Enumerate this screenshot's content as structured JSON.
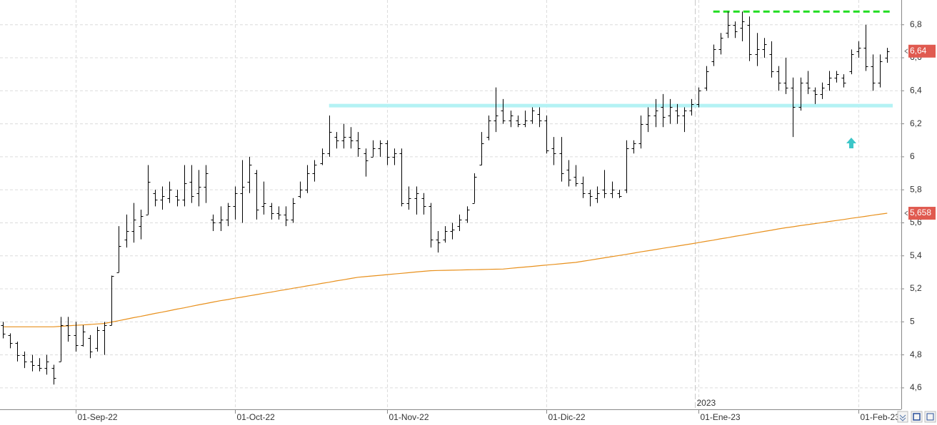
{
  "chart_data": {
    "type": "ohlc",
    "categories": [
      "2022-08-18",
      "2022-08-19",
      "2022-08-22",
      "2022-08-23",
      "2022-08-24",
      "2022-08-25",
      "2022-08-26",
      "2022-08-29",
      "2022-08-30",
      "2022-08-31",
      "2022-09-01",
      "2022-09-02",
      "2022-09-05",
      "2022-09-06",
      "2022-09-07",
      "2022-09-08",
      "2022-09-09",
      "2022-09-12",
      "2022-09-13",
      "2022-09-14",
      "2022-09-15",
      "2022-09-16",
      "2022-09-19",
      "2022-09-20",
      "2022-09-21",
      "2022-09-22",
      "2022-09-23",
      "2022-09-26",
      "2022-09-27",
      "2022-09-28",
      "2022-09-29",
      "2022-09-30",
      "2022-10-03",
      "2022-10-04",
      "2022-10-05",
      "2022-10-06",
      "2022-10-07",
      "2022-10-10",
      "2022-10-11",
      "2022-10-12",
      "2022-10-13",
      "2022-10-14",
      "2022-10-17",
      "2022-10-18",
      "2022-10-19",
      "2022-10-20",
      "2022-10-21",
      "2022-10-24",
      "2022-10-25",
      "2022-10-26",
      "2022-10-27",
      "2022-10-28",
      "2022-10-31",
      "2022-11-01",
      "2022-11-02",
      "2022-11-03",
      "2022-11-04",
      "2022-11-07",
      "2022-11-08",
      "2022-11-09",
      "2022-11-10",
      "2022-11-11",
      "2022-11-14",
      "2022-11-15",
      "2022-11-16",
      "2022-11-17",
      "2022-11-18",
      "2022-11-21",
      "2022-11-22",
      "2022-11-23",
      "2022-11-24",
      "2022-11-25",
      "2022-11-28",
      "2022-11-29",
      "2022-11-30",
      "2022-12-01",
      "2022-12-02",
      "2022-12-05",
      "2022-12-06",
      "2022-12-07",
      "2022-12-08",
      "2022-12-09",
      "2022-12-12",
      "2022-12-13",
      "2022-12-14",
      "2022-12-15",
      "2022-12-16",
      "2022-12-19",
      "2022-12-20",
      "2022-12-21",
      "2022-12-22",
      "2022-12-23",
      "2022-12-27",
      "2022-12-28",
      "2022-12-29",
      "2022-12-30",
      "2023-01-02",
      "2023-01-03",
      "2023-01-04",
      "2023-01-05",
      "2023-01-06",
      "2023-01-09",
      "2023-01-10",
      "2023-01-11",
      "2023-01-12",
      "2023-01-13",
      "2023-01-16",
      "2023-01-17",
      "2023-01-18",
      "2023-01-19",
      "2023-01-20",
      "2023-01-23",
      "2023-01-24",
      "2023-01-25",
      "2023-01-26",
      "2023-01-27",
      "2023-01-30",
      "2023-01-31",
      "2023-02-01",
      "2023-02-02",
      "2023-02-03",
      "2023-02-06",
      "2023-02-07"
    ],
    "open": [
      4.98,
      4.92,
      4.87,
      4.8,
      4.76,
      4.74,
      4.72,
      4.72,
      4.76,
      4.98,
      4.92,
      4.86,
      4.9,
      4.84,
      4.95,
      4.98,
      5.3,
      5.5,
      5.55,
      5.58,
      5.65,
      5.78,
      5.74,
      5.75,
      5.76,
      5.74,
      5.85,
      5.78,
      5.82,
      5.62,
      5.6,
      5.62,
      5.7,
      5.78,
      5.85,
      5.9,
      5.7,
      5.7,
      5.66,
      5.65,
      5.62,
      5.76,
      5.8,
      5.9,
      5.96,
      6.02,
      6.12,
      6.1,
      6.12,
      6.1,
      6.02,
      6.0,
      6.05,
      6.08,
      6.0,
      6.02,
      5.72,
      5.75,
      5.75,
      5.7,
      5.5,
      5.5,
      5.55,
      5.58,
      5.62,
      5.72,
      5.95,
      6.12,
      6.22,
      6.28,
      6.22,
      6.22,
      6.2,
      6.22,
      6.26,
      6.22,
      6.05,
      6.02,
      5.92,
      5.88,
      5.84,
      5.78,
      5.75,
      5.8,
      5.78,
      5.78,
      5.8,
      6.05,
      6.08,
      6.2,
      6.25,
      6.3,
      6.25,
      6.28,
      6.25,
      6.28,
      6.32,
      6.42,
      6.58,
      6.65,
      6.75,
      6.8,
      6.78,
      6.8,
      6.62,
      6.65,
      6.62,
      6.52,
      6.45,
      6.42,
      6.3,
      6.45,
      6.4,
      6.38,
      6.44,
      6.48,
      6.48,
      6.52,
      6.64,
      6.66,
      6.55,
      6.45,
      6.6
    ],
    "high": [
      5.0,
      4.93,
      4.88,
      4.82,
      4.8,
      4.78,
      4.8,
      4.74,
      5.03,
      5.03,
      5.0,
      4.98,
      4.92,
      4.97,
      5.0,
      5.28,
      5.58,
      5.65,
      5.72,
      5.68,
      5.95,
      5.8,
      5.82,
      5.85,
      5.8,
      5.95,
      5.95,
      5.92,
      5.95,
      5.65,
      5.7,
      5.72,
      5.82,
      5.98,
      6.0,
      5.92,
      5.85,
      5.72,
      5.7,
      5.7,
      5.75,
      5.85,
      5.95,
      5.98,
      6.05,
      6.25,
      6.15,
      6.2,
      6.18,
      6.15,
      6.05,
      6.1,
      6.1,
      6.1,
      6.05,
      6.05,
      5.82,
      5.82,
      5.78,
      5.72,
      5.55,
      5.58,
      5.6,
      5.65,
      5.7,
      5.9,
      6.15,
      6.25,
      6.42,
      6.35,
      6.28,
      6.25,
      6.28,
      6.3,
      6.3,
      6.25,
      6.12,
      6.12,
      5.98,
      5.95,
      5.88,
      5.8,
      5.82,
      5.92,
      5.85,
      5.8,
      6.1,
      6.1,
      6.25,
      6.3,
      6.35,
      6.38,
      6.35,
      6.32,
      6.3,
      6.35,
      6.42,
      6.55,
      6.68,
      6.75,
      6.88,
      6.82,
      6.88,
      6.85,
      6.75,
      6.72,
      6.7,
      6.55,
      6.6,
      6.48,
      6.48,
      6.52,
      6.42,
      6.45,
      6.52,
      6.52,
      6.5,
      6.65,
      6.7,
      6.8,
      6.62,
      6.62,
      6.66
    ],
    "low": [
      4.9,
      4.84,
      4.76,
      4.72,
      4.7,
      4.7,
      4.68,
      4.62,
      4.76,
      4.88,
      4.82,
      4.85,
      4.78,
      4.82,
      4.8,
      4.98,
      5.3,
      5.45,
      5.48,
      5.5,
      5.65,
      5.7,
      5.68,
      5.72,
      5.7,
      5.7,
      5.72,
      5.7,
      5.72,
      5.55,
      5.55,
      5.58,
      5.62,
      5.6,
      5.78,
      5.62,
      5.65,
      5.62,
      5.62,
      5.58,
      5.6,
      5.75,
      5.78,
      5.85,
      5.95,
      6.0,
      6.05,
      6.05,
      6.05,
      6.0,
      5.88,
      6.0,
      6.0,
      5.95,
      5.95,
      5.7,
      5.68,
      5.65,
      5.65,
      5.45,
      5.42,
      5.48,
      5.5,
      5.55,
      5.6,
      5.72,
      5.95,
      6.1,
      6.15,
      6.2,
      6.18,
      6.18,
      6.18,
      6.2,
      6.18,
      6.02,
      5.95,
      5.85,
      5.82,
      5.82,
      5.75,
      5.7,
      5.72,
      5.75,
      5.75,
      5.75,
      5.78,
      6.02,
      6.05,
      6.15,
      6.18,
      6.18,
      6.2,
      6.2,
      6.15,
      6.25,
      6.3,
      6.4,
      6.55,
      6.62,
      6.72,
      6.72,
      6.7,
      6.58,
      6.55,
      6.6,
      6.48,
      6.4,
      6.38,
      6.12,
      6.28,
      6.38,
      6.32,
      6.35,
      6.4,
      6.45,
      6.42,
      6.5,
      6.6,
      6.52,
      6.4,
      6.42,
      6.57
    ],
    "close": [
      4.93,
      4.87,
      4.8,
      4.76,
      4.74,
      4.72,
      4.76,
      4.66,
      4.98,
      4.92,
      4.86,
      4.94,
      4.82,
      4.95,
      4.98,
      5.28,
      5.46,
      5.55,
      5.62,
      5.64,
      5.85,
      5.74,
      5.76,
      5.8,
      5.74,
      5.84,
      5.76,
      5.82,
      5.9,
      5.6,
      5.62,
      5.7,
      5.78,
      5.82,
      5.95,
      5.68,
      5.72,
      5.66,
      5.65,
      5.62,
      5.72,
      5.8,
      5.9,
      5.95,
      6.02,
      6.15,
      6.1,
      6.12,
      6.1,
      6.05,
      5.98,
      6.05,
      6.08,
      6.0,
      6.02,
      5.72,
      5.75,
      5.78,
      5.7,
      5.5,
      5.48,
      5.55,
      5.56,
      5.62,
      5.68,
      5.88,
      6.08,
      6.22,
      6.25,
      6.22,
      6.25,
      6.2,
      6.22,
      6.28,
      6.22,
      6.04,
      6.02,
      5.9,
      5.86,
      5.84,
      5.78,
      5.76,
      5.78,
      5.78,
      5.8,
      5.76,
      6.05,
      6.08,
      6.2,
      6.25,
      6.28,
      6.24,
      6.3,
      6.25,
      6.28,
      6.32,
      6.4,
      6.52,
      6.65,
      6.72,
      6.8,
      6.76,
      6.82,
      6.62,
      6.65,
      6.68,
      6.52,
      6.45,
      6.42,
      6.3,
      6.45,
      6.42,
      6.38,
      6.42,
      6.48,
      6.5,
      6.45,
      6.62,
      6.66,
      6.55,
      6.45,
      6.58,
      6.64
    ],
    "bar_color": "#000000",
    "moving_average": {
      "color": "#e8901c",
      "values": [
        4.97,
        4.97,
        4.97,
        4.97,
        4.97,
        4.97,
        4.97,
        4.97,
        4.973,
        4.976,
        4.979,
        4.981,
        4.984,
        4.987,
        4.99,
        4.999,
        5.007,
        5.016,
        5.025,
        5.033,
        5.042,
        5.051,
        5.059,
        5.068,
        5.077,
        5.085,
        5.094,
        5.103,
        5.111,
        5.12,
        5.128,
        5.135,
        5.143,
        5.15,
        5.158,
        5.165,
        5.173,
        5.18,
        5.188,
        5.195,
        5.203,
        5.21,
        5.218,
        5.225,
        5.233,
        5.24,
        5.248,
        5.255,
        5.263,
        5.27,
        5.274,
        5.278,
        5.282,
        5.286,
        5.29,
        5.294,
        5.298,
        5.302,
        5.306,
        5.31,
        5.311,
        5.312,
        5.313,
        5.314,
        5.315,
        5.316,
        5.317,
        5.318,
        5.319,
        5.32,
        5.324,
        5.328,
        5.332,
        5.336,
        5.34,
        5.344,
        5.348,
        5.352,
        5.356,
        5.36,
        5.367,
        5.374,
        5.381,
        5.388,
        5.395,
        5.402,
        5.409,
        5.416,
        5.424,
        5.431,
        5.438,
        5.445,
        5.452,
        5.459,
        5.466,
        5.473,
        5.48,
        5.488,
        5.495,
        5.503,
        5.51,
        5.518,
        5.525,
        5.533,
        5.54,
        5.548,
        5.555,
        5.563,
        5.57,
        5.576,
        5.583,
        5.589,
        5.595,
        5.601,
        5.608,
        5.614,
        5.62,
        5.627,
        5.633,
        5.639,
        5.646,
        5.652,
        5.658
      ]
    },
    "levels": [
      {
        "value": 6.31,
        "start": "2022-10-20",
        "color": "#b4f2f4",
        "dashed": false
      },
      {
        "value": 6.88,
        "start": "2023-01-04",
        "color": "#22dd22",
        "dashed": true
      }
    ],
    "price_labels": [
      {
        "value": 6.64,
        "label": "6,64",
        "color": "#e05a50"
      },
      {
        "value": 5.658,
        "label": "5,658",
        "color": "#e05a50"
      }
    ],
    "ylim": [
      4.47,
      6.95
    ],
    "yticks": [
      {
        "value": 4.6,
        "label": "4,6"
      },
      {
        "value": 4.8,
        "label": "4,8"
      },
      5,
      {
        "value": 5.2,
        "label": "5,2"
      },
      {
        "value": 5.4,
        "label": "5,4"
      },
      {
        "value": 5.6,
        "label": "5,6"
      },
      {
        "value": 5.8,
        "label": "5,8"
      },
      6,
      {
        "value": 6.2,
        "label": "6,2"
      },
      {
        "value": 6.4,
        "label": "6,4"
      },
      {
        "value": 6.6,
        "label": "6,6"
      },
      {
        "value": 6.8,
        "label": "6,8"
      }
    ],
    "xticks": [
      {
        "value": "2022-09-01",
        "label": "01-Sep-22"
      },
      {
        "value": "2022-10-01",
        "label": "01-Oct-22"
      },
      {
        "value": "2022-11-01",
        "label": "01-Nov-22"
      },
      {
        "value": "2022-12-01",
        "label": "01-Dic-22"
      },
      {
        "value": "2023-01-01",
        "label": "01-Ene-23"
      },
      {
        "value": "2023-02-01",
        "label": "01-Feb-23"
      }
    ],
    "year_tick": {
      "value": "2023-01-01",
      "label": "2023"
    },
    "grid": true
  }
}
